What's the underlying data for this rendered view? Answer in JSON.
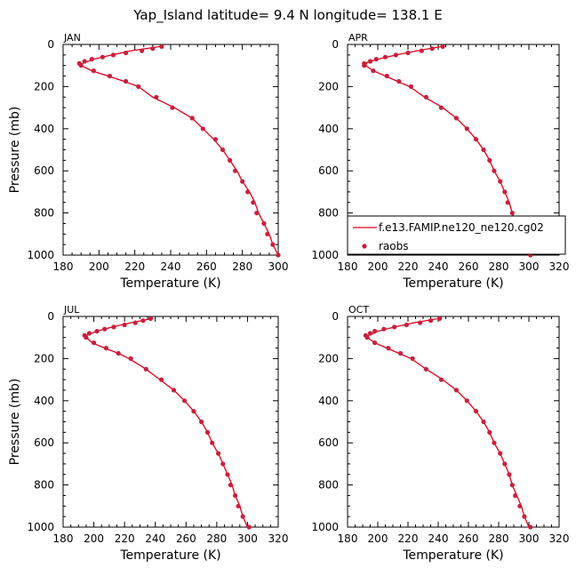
{
  "title": "Yap_Island  latitude= 9.4 N longitude= 138.1 E",
  "legend": {
    "model_label": "f.e13.FAMIP.ne120_ne120.cg02",
    "obs_label": "raobs"
  },
  "colors": {
    "model_line": "#e0001a",
    "obs_marker": "#c8203c",
    "axis": "#000000"
  },
  "chart_data": [
    {
      "type": "line",
      "panel": "JAN",
      "xlabel": "Temperature (K)",
      "ylabel": "Pressure (mb)",
      "xlim": [
        180,
        300
      ],
      "ylim": [
        1000,
        0
      ],
      "xticks": [
        180,
        200,
        220,
        240,
        260,
        280,
        300
      ],
      "yticks": [
        0,
        200,
        400,
        600,
        800,
        1000
      ],
      "series": [
        {
          "values": [
            [
              234,
              10
            ],
            [
              218,
              30
            ],
            [
              207,
              50
            ],
            [
              197,
              70
            ],
            [
              191,
              90
            ],
            [
              190,
              100
            ],
            [
              196,
              125
            ],
            [
              205,
              150
            ],
            [
              214,
              175
            ],
            [
              222,
              200
            ],
            [
              230,
              250
            ],
            [
              242,
              300
            ],
            [
              252,
              350
            ],
            [
              258,
              400
            ],
            [
              264,
              450
            ],
            [
              269,
              500
            ],
            [
              273,
              550
            ],
            [
              277,
              600
            ],
            [
              280,
              650
            ],
            [
              284,
              700
            ],
            [
              287,
              750
            ],
            [
              289,
              800
            ],
            [
              292,
              850
            ],
            [
              295,
              900
            ],
            [
              297,
              950
            ],
            [
              300,
              1000
            ]
          ]
        },
        {
          "name": "raobs",
          "values": [
            [
              235,
              10
            ],
            [
              230,
              20
            ],
            [
              224,
              30
            ],
            [
              215,
              40
            ],
            [
              208,
              50
            ],
            [
              202,
              60
            ],
            [
              196,
              70
            ],
            [
              192,
              80
            ],
            [
              189,
              90
            ],
            [
              190,
              100
            ],
            [
              197,
              125
            ],
            [
              206,
              150
            ],
            [
              215,
              175
            ],
            [
              222,
              200
            ],
            [
              232,
              250
            ],
            [
              241,
              300
            ],
            [
              252,
              350
            ],
            [
              258,
              400
            ],
            [
              265,
              450
            ],
            [
              269,
              500
            ],
            [
              273,
              550
            ],
            [
              276,
              600
            ],
            [
              280,
              650
            ],
            [
              283,
              700
            ],
            [
              286,
              750
            ],
            [
              288,
              800
            ],
            [
              292,
              850
            ],
            [
              294,
              900
            ],
            [
              297,
              950
            ],
            [
              300,
              1000
            ]
          ]
        }
      ]
    },
    {
      "type": "line",
      "panel": "APR",
      "xlabel": "Temperature (K)",
      "ylabel": "",
      "xlim": [
        180,
        320
      ],
      "ylim": [
        1000,
        0
      ],
      "xticks": [
        180,
        200,
        220,
        240,
        260,
        280,
        300,
        320
      ],
      "yticks": [
        0,
        200,
        400,
        600,
        800,
        1000
      ],
      "series": [
        {
          "values": [
            [
              242,
              10
            ],
            [
              226,
              30
            ],
            [
              212,
              50
            ],
            [
              200,
              70
            ],
            [
              193,
              85
            ],
            [
              192,
              100
            ],
            [
              197,
              125
            ],
            [
              205,
              150
            ],
            [
              213,
              175
            ],
            [
              221,
              200
            ],
            [
              231,
              250
            ],
            [
              243,
              300
            ],
            [
              252,
              350
            ],
            [
              259,
              400
            ],
            [
              265,
              450
            ],
            [
              270,
              500
            ],
            [
              274,
              550
            ],
            [
              277,
              600
            ],
            [
              281,
              650
            ],
            [
              284,
              700
            ],
            [
              287,
              750
            ],
            [
              289,
              800
            ],
            [
              292,
              850
            ],
            [
              295,
              900
            ],
            [
              297,
              950
            ],
            [
              300,
              1000
            ]
          ]
        },
        {
          "name": "raobs",
          "values": [
            [
              243,
              10
            ],
            [
              236,
              20
            ],
            [
              229,
              30
            ],
            [
              220,
              40
            ],
            [
              212,
              50
            ],
            [
              205,
              60
            ],
            [
              199,
              70
            ],
            [
              195,
              80
            ],
            [
              191,
              90
            ],
            [
              191,
              100
            ],
            [
              197,
              125
            ],
            [
              206,
              150
            ],
            [
              214,
              175
            ],
            [
              222,
              200
            ],
            [
              232,
              250
            ],
            [
              242,
              300
            ],
            [
              252,
              350
            ],
            [
              259,
              400
            ],
            [
              265,
              450
            ],
            [
              270,
              500
            ],
            [
              274,
              550
            ],
            [
              277,
              600
            ],
            [
              281,
              650
            ],
            [
              284,
              700
            ],
            [
              286,
              750
            ],
            [
              289,
              800
            ],
            [
              291,
              850
            ],
            [
              294,
              900
            ],
            [
              297,
              950
            ],
            [
              301,
              1000
            ]
          ]
        }
      ]
    },
    {
      "type": "line",
      "panel": "JUL",
      "xlabel": "Temperature (K)",
      "ylabel": "Pressure (mb)",
      "xlim": [
        180,
        320
      ],
      "ylim": [
        1000,
        0
      ],
      "xticks": [
        180,
        200,
        220,
        240,
        260,
        280,
        300,
        320
      ],
      "yticks": [
        0,
        200,
        400,
        600,
        800,
        1000
      ],
      "series": [
        {
          "values": [
            [
              238,
              10
            ],
            [
              224,
              30
            ],
            [
              212,
              50
            ],
            [
              202,
              70
            ],
            [
              195,
              90
            ],
            [
              195,
              100
            ],
            [
              199,
              125
            ],
            [
              207,
              150
            ],
            [
              216,
              175
            ],
            [
              223,
              200
            ],
            [
              234,
              250
            ],
            [
              243,
              300
            ],
            [
              252,
              350
            ],
            [
              259,
              400
            ],
            [
              265,
              450
            ],
            [
              270,
              500
            ],
            [
              274,
              550
            ],
            [
              277,
              600
            ],
            [
              281,
              650
            ],
            [
              284,
              700
            ],
            [
              287,
              750
            ],
            [
              290,
              800
            ],
            [
              292,
              850
            ],
            [
              295,
              900
            ],
            [
              297,
              950
            ],
            [
              300,
              1000
            ]
          ]
        },
        {
          "name": "raobs",
          "values": [
            [
              237,
              10
            ],
            [
              232,
              20
            ],
            [
              227,
              30
            ],
            [
              220,
              40
            ],
            [
              213,
              50
            ],
            [
              207,
              60
            ],
            [
              202,
              70
            ],
            [
              197,
              80
            ],
            [
              194,
              90
            ],
            [
              195,
              100
            ],
            [
              200,
              125
            ],
            [
              208,
              150
            ],
            [
              216,
              175
            ],
            [
              224,
              200
            ],
            [
              234,
              250
            ],
            [
              244,
              300
            ],
            [
              252,
              350
            ],
            [
              259,
              400
            ],
            [
              265,
              450
            ],
            [
              270,
              500
            ],
            [
              274,
              550
            ],
            [
              277,
              600
            ],
            [
              281,
              650
            ],
            [
              284,
              700
            ],
            [
              287,
              750
            ],
            [
              289,
              800
            ],
            [
              292,
              850
            ],
            [
              294,
              900
            ],
            [
              297,
              950
            ],
            [
              301,
              1000
            ]
          ]
        }
      ]
    },
    {
      "type": "line",
      "panel": "OCT",
      "xlabel": "Temperature (K)",
      "ylabel": "",
      "xlim": [
        180,
        320
      ],
      "ylim": [
        1000,
        0
      ],
      "xticks": [
        180,
        200,
        220,
        240,
        260,
        280,
        300,
        320
      ],
      "yticks": [
        0,
        200,
        400,
        600,
        800,
        1000
      ],
      "series": [
        {
          "values": [
            [
              240,
              10
            ],
            [
              224,
              30
            ],
            [
              211,
              50
            ],
            [
              200,
              70
            ],
            [
              194,
              90
            ],
            [
              193,
              100
            ],
            [
              198,
              125
            ],
            [
              206,
              150
            ],
            [
              214,
              175
            ],
            [
              222,
              200
            ],
            [
              232,
              250
            ],
            [
              243,
              300
            ],
            [
              252,
              350
            ],
            [
              259,
              400
            ],
            [
              265,
              450
            ],
            [
              270,
              500
            ],
            [
              274,
              550
            ],
            [
              277,
              600
            ],
            [
              281,
              650
            ],
            [
              284,
              700
            ],
            [
              287,
              750
            ],
            [
              289,
              800
            ],
            [
              292,
              850
            ],
            [
              295,
              900
            ],
            [
              297,
              950
            ],
            [
              300,
              1000
            ]
          ]
        },
        {
          "name": "raobs",
          "values": [
            [
              241,
              10
            ],
            [
              235,
              20
            ],
            [
              228,
              30
            ],
            [
              219,
              40
            ],
            [
              211,
              50
            ],
            [
              204,
              60
            ],
            [
              198,
              70
            ],
            [
              195,
              80
            ],
            [
              192,
              90
            ],
            [
              193,
              100
            ],
            [
              198,
              125
            ],
            [
              207,
              150
            ],
            [
              215,
              175
            ],
            [
              223,
              200
            ],
            [
              232,
              250
            ],
            [
              242,
              300
            ],
            [
              252,
              350
            ],
            [
              259,
              400
            ],
            [
              265,
              450
            ],
            [
              270,
              500
            ],
            [
              274,
              550
            ],
            [
              277,
              600
            ],
            [
              281,
              650
            ],
            [
              284,
              700
            ],
            [
              287,
              750
            ],
            [
              289,
              800
            ],
            [
              291,
              850
            ],
            [
              294,
              900
            ],
            [
              297,
              950
            ],
            [
              301,
              1000
            ]
          ]
        }
      ]
    }
  ]
}
